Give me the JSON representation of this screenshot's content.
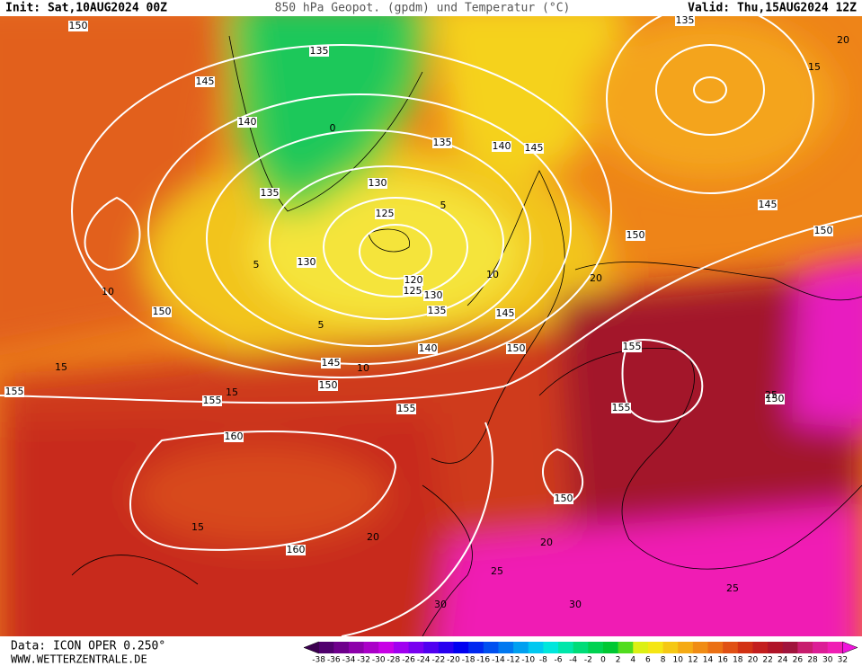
{
  "header": {
    "init": "Init: Sat,10AUG2024 00Z",
    "title": "850 hPa Geopot. (gpdm) und Temperatur (°C)",
    "valid": "Valid: Thu,15AUG2024 12Z"
  },
  "footer": {
    "data": "Data: ICON OPER 0.250°",
    "site": "WWW.WETTERZENTRALE.DE"
  },
  "colorbar": {
    "labels": [
      -38,
      -36,
      -34,
      -32,
      -30,
      -28,
      -26,
      -24,
      -22,
      -20,
      -18,
      -16,
      -14,
      -12,
      -10,
      -8,
      -6,
      -4,
      -2,
      0,
      2,
      4,
      6,
      8,
      10,
      12,
      14,
      16,
      18,
      20,
      22,
      24,
      26,
      28,
      30,
      32
    ],
    "colors": [
      "#3c0050",
      "#50006e",
      "#6e008c",
      "#8c00aa",
      "#aa00c8",
      "#c800e6",
      "#a000f0",
      "#7800f0",
      "#5000f0",
      "#2800f0",
      "#0000f0",
      "#0028f0",
      "#0050f0",
      "#0078f0",
      "#00a0f0",
      "#00c8f0",
      "#00e6dc",
      "#00e6aa",
      "#00dc78",
      "#00d250",
      "#00c832",
      "#50dc1e",
      "#dcf014",
      "#f5e614",
      "#f5c814",
      "#f5aa14",
      "#f08c14",
      "#eb7014",
      "#e05014",
      "#d23214",
      "#c31e1e",
      "#b01428",
      "#a0143c",
      "#c81e6e",
      "#dc1e96",
      "#f01eb4",
      "#f014dc"
    ]
  },
  "geopotential_labels": [
    150,
    145,
    140,
    135,
    135,
    130,
    125,
    120,
    125,
    130,
    135,
    130,
    135,
    140,
    145,
    135,
    145,
    150,
    150,
    145,
    140,
    150,
    145,
    150,
    155,
    155,
    155,
    155,
    155,
    150,
    160,
    160,
    150,
    150
  ],
  "temperature_labels": [
    15,
    10,
    5,
    5,
    10,
    15,
    20,
    25,
    15,
    20,
    20,
    25,
    30,
    30,
    25,
    20,
    15,
    10,
    5,
    0
  ]
}
